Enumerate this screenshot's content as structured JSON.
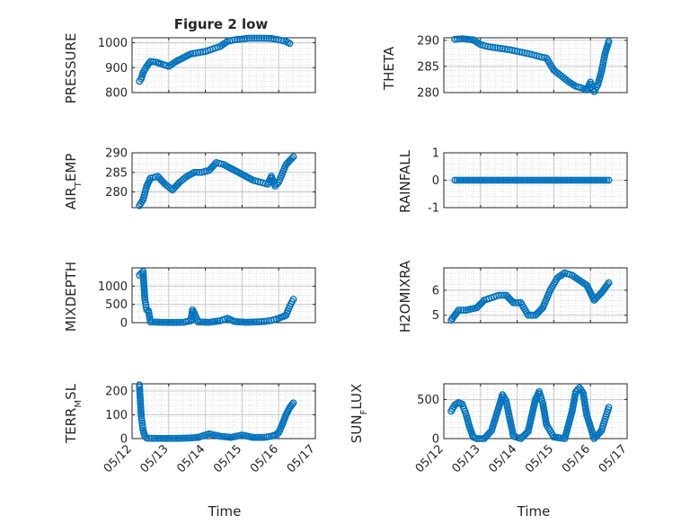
{
  "figure_title": "Figure 2 low",
  "colors": {
    "marker": "#0072BD",
    "axis": "#262626",
    "grid": "#d9d9d9",
    "background": "#ffffff"
  },
  "chart_data": [
    {
      "type": "scatter",
      "id": "pressure",
      "title": "Figure 2 low",
      "ylabel": "PRESSURE",
      "xlabel": "",
      "xlim": [
        "05/12",
        "05/17"
      ],
      "ylim": [
        800,
        1020
      ],
      "yticks": [
        800,
        900,
        1000
      ],
      "xticks": [
        "05/12",
        "05/13",
        "05/14",
        "05/15",
        "05/16",
        "05/17"
      ],
      "show_xtick_labels": false,
      "grid": "minor-dotted",
      "x": [
        "05/12 04:48",
        "05/12 06:00",
        "05/12 07:12",
        "05/12 09:36",
        "05/12 12:00",
        "05/12 15:36",
        "05/12 19:12",
        "05/13 00:00",
        "05/13 04:48",
        "05/13 09:36",
        "05/13 14:24",
        "05/13 19:12",
        "05/14 00:00",
        "05/14 04:48",
        "05/14 09:36",
        "05/14 14:24",
        "05/14 19:12",
        "05/15 00:00",
        "05/15 04:48",
        "05/15 09:36",
        "05/15 14:24",
        "05/15 19:12",
        "05/16 00:00",
        "05/16 04:48",
        "05/16 07:12"
      ],
      "y": [
        845,
        855,
        880,
        905,
        925,
        922,
        915,
        905,
        925,
        940,
        955,
        960,
        965,
        975,
        985,
        1005,
        1012,
        1015,
        1018,
        1018,
        1018,
        1017,
        1012,
        1005,
        997
      ]
    },
    {
      "type": "scatter",
      "id": "theta",
      "ylabel": "THETA",
      "xlim": [
        "05/12",
        "05/17"
      ],
      "ylim": [
        280,
        290.5
      ],
      "yticks": [
        280,
        285,
        290
      ],
      "xticks": [
        "05/12",
        "05/13",
        "05/14",
        "05/15",
        "05/16",
        "05/17"
      ],
      "show_xtick_labels": false,
      "grid": "minor-dotted",
      "x": [
        "05/12 07:12",
        "05/12 12:00",
        "05/12 19:12",
        "05/13 00:00",
        "05/13 04:48",
        "05/13 09:36",
        "05/13 14:24",
        "05/13 19:12",
        "05/14 00:00",
        "05/14 04:48",
        "05/14 09:36",
        "05/14 14:24",
        "05/14 19:12",
        "05/15 00:00",
        "05/15 04:48",
        "05/15 09:36",
        "05/15 14:24",
        "05/15 19:12",
        "05/15 21:36",
        "05/16 00:00",
        "05/16 02:24",
        "05/16 04:48",
        "05/16 07:12",
        "05/16 09:36",
        "05/16 12:00"
      ],
      "y": [
        290.2,
        290.3,
        290.1,
        289.2,
        288.8,
        288.6,
        288.4,
        288.2,
        287.9,
        287.6,
        287.3,
        286.9,
        286.6,
        284.3,
        283.2,
        282.1,
        281.2,
        280.8,
        280.5,
        282.0,
        280.2,
        281.5,
        284.0,
        287.5,
        289.8
      ]
    },
    {
      "type": "scatter",
      "id": "air_temp",
      "ylabel": "AIR_TEMP",
      "xlim": [
        "05/12",
        "05/17"
      ],
      "ylim": [
        276,
        290
      ],
      "yticks": [
        280,
        285,
        290
      ],
      "xticks": [
        "05/12",
        "05/13",
        "05/14",
        "05/15",
        "05/16",
        "05/17"
      ],
      "show_xtick_labels": false,
      "grid": "minor-dotted",
      "x": [
        "05/12 04:48",
        "05/12 07:12",
        "05/12 09:36",
        "05/12 12:00",
        "05/12 16:48",
        "05/12 21:36",
        "05/13 02:24",
        "05/13 07:12",
        "05/13 12:00",
        "05/13 16:48",
        "05/13 21:36",
        "05/14 02:24",
        "05/14 07:12",
        "05/14 12:00",
        "05/14 16:48",
        "05/14 21:36",
        "05/15 02:24",
        "05/15 07:12",
        "05/15 12:00",
        "05/15 16:48",
        "05/15 19:12",
        "05/15 21:36",
        "05/16 00:00",
        "05/16 04:48",
        "05/16 09:36"
      ],
      "y": [
        276.5,
        278.0,
        281.5,
        283.5,
        284.0,
        282.0,
        280.5,
        282.5,
        284.0,
        285.0,
        285.0,
        285.5,
        287.5,
        287.0,
        286.0,
        285.0,
        284.0,
        283.0,
        282.5,
        282.0,
        284.0,
        281.5,
        282.5,
        287.0,
        289.0
      ]
    },
    {
      "type": "scatter",
      "id": "rainfall",
      "ylabel": "RAINFALL",
      "xlim": [
        "05/12",
        "05/17"
      ],
      "ylim": [
        -1,
        1
      ],
      "yticks": [
        -1,
        0,
        1
      ],
      "xticks": [
        "05/12",
        "05/13",
        "05/14",
        "05/15",
        "05/16",
        "05/17"
      ],
      "show_xtick_labels": false,
      "grid": "minor-dotted",
      "x": [
        "05/12 07:12",
        "05/12 14:24",
        "05/12 21:36",
        "05/13 04:48",
        "05/13 12:00",
        "05/13 19:12",
        "05/14 02:24",
        "05/14 09:36",
        "05/14 16:48",
        "05/15 00:00",
        "05/15 07:12",
        "05/15 14:24",
        "05/15 21:36",
        "05/16 04:48",
        "05/16 12:00"
      ],
      "y": [
        0,
        0,
        0,
        0,
        0,
        0,
        0,
        0,
        0,
        0,
        0,
        0,
        0,
        0,
        0
      ]
    },
    {
      "type": "scatter",
      "id": "mixdepth",
      "ylabel": "MIXDEPTH",
      "xlim": [
        "05/12",
        "05/17"
      ],
      "ylim": [
        0,
        1500
      ],
      "yticks": [
        0,
        500,
        1000
      ],
      "xticks": [
        "05/12",
        "05/13",
        "05/14",
        "05/15",
        "05/16",
        "05/17"
      ],
      "show_xtick_labels": false,
      "grid": "minor-dotted",
      "x": [
        "05/12 04:48",
        "05/12 07:12",
        "05/12 08:24",
        "05/12 09:36",
        "05/12 10:48",
        "05/12 12:00",
        "05/12 19:12",
        "05/13 02:24",
        "05/13 09:36",
        "05/13 14:24",
        "05/13 15:36",
        "05/13 16:48",
        "05/13 19:12",
        "05/14 02:24",
        "05/14 09:36",
        "05/14 14:24",
        "05/14 19:12",
        "05/15 02:24",
        "05/15 09:36",
        "05/15 14:24",
        "05/15 19:12",
        "05/16 00:00",
        "05/16 04:48",
        "05/16 07:12",
        "05/16 09:36"
      ],
      "y": [
        1300,
        1400,
        620,
        350,
        320,
        20,
        10,
        5,
        10,
        50,
        350,
        250,
        20,
        10,
        50,
        120,
        30,
        10,
        20,
        30,
        60,
        120,
        200,
        450,
        640
      ]
    },
    {
      "type": "scatter",
      "id": "h2omixra",
      "ylabel": "H2OMIXRA",
      "xlim": [
        "05/12",
        "05/17"
      ],
      "ylim": [
        4.7,
        6.9
      ],
      "yticks": [
        5,
        6
      ],
      "xticks": [
        "05/12",
        "05/13",
        "05/14",
        "05/15",
        "05/16",
        "05/17"
      ],
      "show_xtick_labels": false,
      "grid": "minor-dotted",
      "x": [
        "05/12 04:48",
        "05/12 07:12",
        "05/12 09:36",
        "05/12 14:24",
        "05/12 21:36",
        "05/13 02:24",
        "05/13 07:12",
        "05/13 12:00",
        "05/13 16:48",
        "05/13 21:36",
        "05/14 02:24",
        "05/14 07:12",
        "05/14 12:00",
        "05/14 16:48",
        "05/14 21:36",
        "05/15 02:24",
        "05/15 07:12",
        "05/15 12:00",
        "05/15 16:48",
        "05/15 21:36",
        "05/16 00:00",
        "05/16 02:24",
        "05/16 07:12",
        "05/16 09:36",
        "05/16 12:00"
      ],
      "y": [
        4.8,
        5.0,
        5.2,
        5.2,
        5.3,
        5.6,
        5.7,
        5.8,
        5.8,
        5.5,
        5.5,
        5.0,
        5.0,
        5.3,
        6.0,
        6.5,
        6.7,
        6.6,
        6.4,
        6.2,
        5.9,
        5.6,
        5.9,
        6.1,
        6.3
      ]
    },
    {
      "type": "scatter",
      "id": "terr_msl",
      "ylabel": "TERR_MSL",
      "xlim": [
        "05/12",
        "05/17"
      ],
      "ylim": [
        0,
        230
      ],
      "yticks": [
        0,
        100,
        200
      ],
      "xticks": [
        "05/12",
        "05/13",
        "05/14",
        "05/15",
        "05/16",
        "05/17"
      ],
      "show_xtick_labels": true,
      "grid": "minor-dotted",
      "x": [
        "05/12 04:48",
        "05/12 06:00",
        "05/12 07:12",
        "05/12 08:24",
        "05/12 09:36",
        "05/12 14:24",
        "05/12 21:36",
        "05/13 04:48",
        "05/13 12:00",
        "05/13 19:12",
        "05/14 02:24",
        "05/14 09:36",
        "05/14 16:48",
        "05/15 00:00",
        "05/15 07:12",
        "05/15 14:24",
        "05/15 19:12",
        "05/15 21:36",
        "05/16 00:00",
        "05/16 02:24",
        "05/16 04:48",
        "05/16 07:12",
        "05/16 09:36"
      ],
      "y": [
        225,
        95,
        35,
        10,
        2,
        1,
        1,
        1,
        2,
        5,
        20,
        10,
        5,
        15,
        5,
        5,
        10,
        15,
        25,
        60,
        100,
        130,
        150
      ]
    },
    {
      "type": "scatter",
      "id": "sun_flux",
      "ylabel": "SUN_FLUX",
      "xlim": [
        "05/12",
        "05/17"
      ],
      "ylim": [
        0,
        700
      ],
      "yticks": [
        0,
        500
      ],
      "xticks": [
        "05/12",
        "05/13",
        "05/14",
        "05/15",
        "05/16",
        "05/17"
      ],
      "show_xtick_labels": true,
      "grid": "minor-dotted",
      "x": [
        "05/12 04:48",
        "05/12 07:12",
        "05/12 09:36",
        "05/12 12:00",
        "05/12 14:24",
        "05/12 16:48",
        "05/12 19:12",
        "05/12 21:36",
        "05/13 02:24",
        "05/13 07:12",
        "05/13 12:00",
        "05/13 14:24",
        "05/13 16:48",
        "05/13 19:12",
        "05/13 21:36",
        "05/14 02:24",
        "05/14 07:12",
        "05/14 12:00",
        "05/14 14:24",
        "05/14 16:48",
        "05/14 19:12",
        "05/15 00:00",
        "05/15 07:12",
        "05/15 12:00",
        "05/15 14:24",
        "05/15 16:48",
        "05/15 19:12",
        "05/15 21:36",
        "05/16 02:24",
        "05/16 07:12",
        "05/16 09:36",
        "05/16 12:00"
      ],
      "y": [
        350,
        430,
        460,
        440,
        320,
        150,
        20,
        0,
        0,
        100,
        400,
        560,
        480,
        250,
        30,
        0,
        90,
        500,
        600,
        450,
        180,
        20,
        0,
        350,
        600,
        650,
        580,
        300,
        0,
        100,
        250,
        400
      ]
    }
  ],
  "ylabels": {
    "pressure": "PRESSURE",
    "theta": "THETA",
    "air_temp_main": "AIR",
    "air_temp_sub": "T",
    "air_temp_rest": "EMP",
    "rainfall": "RAINFALL",
    "mixdepth": "MIXDEPTH",
    "h2omixra": "H2OMIXRA",
    "terr_main": "TERR",
    "terr_sub": "M",
    "terr_rest": "SL",
    "sun_main": "SUN",
    "sun_sub": "F",
    "sun_rest": "LUX"
  },
  "xlabels": {
    "left": "Time",
    "right": "Time"
  }
}
